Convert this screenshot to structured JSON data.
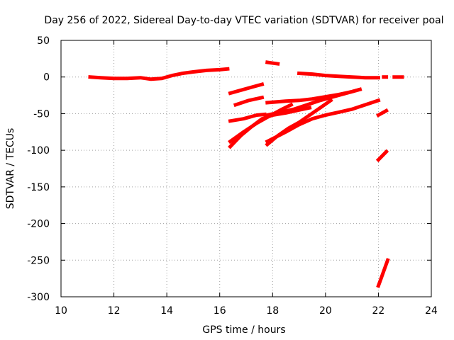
{
  "chart_data": {
    "type": "line",
    "title": "Day 256 of 2022, Sidereal Day-to-day VTEC variation (SDTVAR) for receiver poal",
    "xlabel": "GPS time / hours",
    "ylabel": "SDTVAR / TECUs",
    "xlim": [
      10,
      24
    ],
    "ylim": [
      -300,
      50
    ],
    "xticks": [
      10,
      12,
      14,
      16,
      18,
      20,
      22,
      24
    ],
    "yticks": [
      50,
      0,
      -50,
      -100,
      -150,
      -200,
      -250,
      -300
    ],
    "grid": true,
    "color": "#ff0000",
    "series": [
      {
        "x": [
          11.1,
          11.5,
          12.0,
          12.5,
          13.0,
          13.4,
          13.8,
          14.2,
          14.6,
          15.0,
          15.5,
          16.0,
          16.3
        ],
        "y": [
          0,
          -1,
          -2,
          -2,
          -1,
          -3,
          -2,
          2,
          5,
          7,
          9,
          10,
          11
        ]
      },
      {
        "x": [
          16.4,
          16.9,
          17.4,
          17.6
        ],
        "y": [
          -22,
          -17,
          -12,
          -10
        ]
      },
      {
        "x": [
          16.6,
          17.1,
          17.6
        ],
        "y": [
          -38,
          -32,
          -28
        ]
      },
      {
        "x": [
          16.4,
          16.9,
          17.4,
          17.7
        ],
        "y": [
          -60,
          -57,
          -52,
          -51
        ]
      },
      {
        "x": [
          16.4,
          16.8,
          17.2,
          17.6,
          18.0,
          18.5,
          19.0,
          19.4
        ],
        "y": [
          -95,
          -80,
          -68,
          -57,
          -52,
          -49,
          -45,
          -42
        ]
      },
      {
        "x": [
          16.4,
          16.9,
          17.4,
          17.8,
          18.3,
          18.7
        ],
        "y": [
          -88,
          -75,
          -63,
          -55,
          -45,
          -38
        ]
      },
      {
        "x": [
          17.8,
          18.2
        ],
        "y": [
          20,
          18
        ]
      },
      {
        "x": [
          17.8,
          18.5,
          19.0,
          19.5,
          20.0,
          20.5,
          21.0,
          21.3
        ],
        "y": [
          -35,
          -33,
          -32,
          -30,
          -27,
          -24,
          -20,
          -17
        ]
      },
      {
        "x": [
          17.8,
          18.3,
          18.8,
          19.3,
          19.8,
          20.3,
          20.8,
          21.3
        ],
        "y": [
          -52,
          -48,
          -44,
          -38,
          -32,
          -27,
          -22,
          -17
        ]
      },
      {
        "x": [
          17.8,
          18.2,
          18.6,
          19.0,
          19.4,
          19.8,
          20.2
        ],
        "y": [
          -92,
          -80,
          -70,
          -62,
          -52,
          -42,
          -32
        ]
      },
      {
        "x": [
          17.8,
          18.5,
          19.0,
          19.5,
          20.0,
          20.5,
          21.0,
          21.5,
          22.0
        ],
        "y": [
          -88,
          -75,
          -65,
          -57,
          -52,
          -48,
          -44,
          -38,
          -32
        ]
      },
      {
        "x": [
          19.0,
          19.5,
          20.0,
          20.5,
          21.0,
          21.5,
          22.0
        ],
        "y": [
          5,
          4,
          2,
          1,
          0,
          -1,
          -1
        ]
      },
      {
        "x": [
          22.2,
          22.3
        ],
        "y": [
          0,
          0
        ]
      },
      {
        "x": [
          22.6,
          22.9
        ],
        "y": [
          0,
          0
        ]
      },
      {
        "x": [
          22.0,
          22.3
        ],
        "y": [
          -52,
          -46
        ]
      },
      {
        "x": [
          22.0,
          22.3
        ],
        "y": [
          -113,
          -102
        ]
      },
      {
        "x": [
          22.0,
          22.1,
          22.2,
          22.35
        ],
        "y": [
          -285,
          -275,
          -265,
          -250
        ]
      }
    ]
  }
}
